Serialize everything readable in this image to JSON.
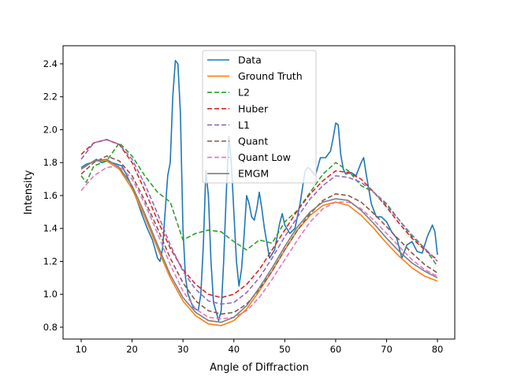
{
  "chart_data": {
    "type": "line",
    "title": "",
    "xlabel": "Angle of Diffraction",
    "ylabel": "Intensity",
    "xlim": [
      6.44,
      83.4
    ],
    "ylim": [
      0.728,
      2.51
    ],
    "xticks": [
      10,
      20,
      30,
      40,
      50,
      60,
      70,
      80
    ],
    "yticks": [
      0.8,
      1.0,
      1.2,
      1.4,
      1.6,
      1.8,
      2.0,
      2.2,
      2.4
    ],
    "grid": false,
    "legend_placement": "upper-center",
    "series": [
      {
        "name": "Data",
        "color": "#1f77b4",
        "style": "solid",
        "x": [
          10,
          11,
          12,
          13,
          14,
          15,
          16,
          17,
          18,
          19,
          20,
          21,
          22,
          23,
          24,
          25,
          25.5,
          26,
          26.5,
          27,
          27.5,
          28,
          28.5,
          29,
          29.5,
          30,
          30.5,
          31,
          32,
          33,
          33.5,
          34,
          34.5,
          35,
          35.5,
          36,
          37,
          37.5,
          38,
          38.5,
          39,
          39.5,
          40,
          40.5,
          41,
          41.5,
          42,
          42.5,
          43,
          43.5,
          44,
          44.5,
          45,
          45.5,
          46,
          47,
          48,
          49,
          49.5,
          50,
          51,
          52,
          53,
          54,
          54.5,
          55,
          56,
          57,
          58,
          59,
          59.5,
          60,
          60.5,
          61,
          61.5,
          62,
          63,
          64,
          65,
          65.5,
          66,
          67,
          68,
          69,
          70,
          71,
          72,
          73,
          74,
          75,
          76,
          77,
          78,
          79,
          79.5,
          80
        ],
        "y": [
          1.77,
          1.79,
          1.8,
          1.82,
          1.8,
          1.81,
          1.8,
          1.79,
          1.78,
          1.72,
          1.65,
          1.57,
          1.48,
          1.4,
          1.33,
          1.22,
          1.2,
          1.28,
          1.5,
          1.72,
          1.8,
          2.2,
          2.42,
          2.4,
          2.1,
          1.4,
          1.1,
          1.0,
          0.92,
          0.9,
          1.0,
          1.3,
          1.75,
          1.6,
          1.2,
          0.95,
          0.84,
          0.9,
          1.2,
          1.6,
          1.96,
          1.8,
          1.5,
          1.2,
          1.05,
          1.15,
          1.35,
          1.6,
          1.55,
          1.47,
          1.45,
          1.52,
          1.62,
          1.52,
          1.4,
          1.22,
          1.27,
          1.43,
          1.49,
          1.42,
          1.37,
          1.4,
          1.55,
          1.75,
          1.77,
          1.76,
          1.72,
          1.83,
          1.83,
          1.87,
          1.95,
          2.04,
          2.03,
          1.85,
          1.76,
          1.73,
          1.74,
          1.72,
          1.8,
          1.83,
          1.73,
          1.55,
          1.47,
          1.47,
          1.44,
          1.38,
          1.34,
          1.22,
          1.3,
          1.32,
          1.26,
          1.25,
          1.35,
          1.42,
          1.38,
          1.24
        ]
      },
      {
        "name": "Ground Truth",
        "color": "#ff7f0e",
        "style": "solid",
        "x": [
          10,
          12.5,
          15,
          17.5,
          20,
          22.5,
          25,
          27.5,
          30,
          32.5,
          35,
          37.5,
          40,
          42.5,
          45,
          47.5,
          50,
          52.5,
          55,
          57.5,
          60,
          62.5,
          65,
          67.5,
          70,
          72.5,
          75,
          77.5,
          80
        ],
        "y": [
          1.76,
          1.81,
          1.81,
          1.76,
          1.64,
          1.47,
          1.28,
          1.1,
          0.96,
          0.87,
          0.82,
          0.81,
          0.84,
          0.91,
          1.02,
          1.14,
          1.27,
          1.39,
          1.48,
          1.54,
          1.56,
          1.54,
          1.48,
          1.4,
          1.31,
          1.23,
          1.16,
          1.11,
          1.08
        ]
      },
      {
        "name": "L2",
        "color": "#2ca02c",
        "style": "dashed",
        "x": [
          10,
          11,
          12.5,
          15,
          17.5,
          20,
          22.5,
          25,
          27.5,
          30,
          32.5,
          35,
          37.5,
          40,
          42.5,
          45,
          47.5,
          50,
          52.5,
          55,
          57.5,
          60,
          62.5,
          65,
          67.5,
          70,
          72.5,
          75,
          77.5,
          80
        ],
        "y": [
          1.72,
          1.68,
          1.78,
          1.81,
          1.92,
          1.84,
          1.72,
          1.62,
          1.56,
          1.33,
          1.37,
          1.39,
          1.38,
          1.32,
          1.27,
          1.33,
          1.31,
          1.44,
          1.51,
          1.62,
          1.73,
          1.8,
          1.75,
          1.66,
          1.62,
          1.55,
          1.45,
          1.35,
          1.28,
          1.17
        ]
      },
      {
        "name": "Huber",
        "color": "#d62728",
        "style": "dashed",
        "x": [
          10,
          12.5,
          15,
          17.5,
          20,
          22.5,
          25,
          27.5,
          30,
          32.5,
          35,
          37.5,
          40,
          42.5,
          45,
          47.5,
          50,
          52.5,
          55,
          57.5,
          60,
          62.5,
          65,
          67.5,
          70,
          72.5,
          75,
          77.5,
          80
        ],
        "y": [
          1.85,
          1.92,
          1.94,
          1.91,
          1.8,
          1.63,
          1.45,
          1.28,
          1.15,
          1.06,
          1.0,
          0.98,
          1.0,
          1.06,
          1.15,
          1.27,
          1.39,
          1.51,
          1.61,
          1.69,
          1.75,
          1.74,
          1.7,
          1.62,
          1.53,
          1.43,
          1.34,
          1.27,
          1.21
        ]
      },
      {
        "name": "L1",
        "color": "#9467bd",
        "style": "dashed",
        "x": [
          10,
          12.5,
          15,
          17.5,
          20,
          22.5,
          25,
          27.5,
          30,
          32.5,
          35,
          37.5,
          40,
          42.5,
          45,
          47.5,
          50,
          52.5,
          55,
          57.5,
          60,
          62.5,
          65,
          67.5,
          70,
          72.5,
          75,
          77.5,
          80
        ],
        "y": [
          1.82,
          1.92,
          1.94,
          1.91,
          1.82,
          1.67,
          1.49,
          1.3,
          1.14,
          1.03,
          0.96,
          0.94,
          0.95,
          1.01,
          1.1,
          1.22,
          1.35,
          1.47,
          1.58,
          1.66,
          1.72,
          1.71,
          1.68,
          1.62,
          1.54,
          1.45,
          1.36,
          1.28,
          1.2
        ]
      },
      {
        "name": "Quant",
        "color": "#8c564b",
        "style": "dashed",
        "x": [
          10,
          12.5,
          15,
          17.5,
          20,
          22.5,
          25,
          27.5,
          30,
          32.5,
          35,
          37.5,
          40,
          42.5,
          45,
          47.5,
          50,
          52.5,
          55,
          57.5,
          60,
          62.5,
          65,
          67.5,
          70,
          72.5,
          75,
          77.5,
          80
        ],
        "y": [
          1.73,
          1.8,
          1.84,
          1.81,
          1.72,
          1.57,
          1.4,
          1.22,
          1.07,
          0.96,
          0.9,
          0.88,
          0.89,
          0.94,
          1.03,
          1.14,
          1.27,
          1.39,
          1.49,
          1.57,
          1.61,
          1.6,
          1.56,
          1.49,
          1.41,
          1.33,
          1.25,
          1.18,
          1.13
        ]
      },
      {
        "name": "Quant Low",
        "color": "#e377c2",
        "style": "dashed",
        "x": [
          10,
          12.5,
          15,
          17.5,
          20,
          22.5,
          25,
          27.5,
          30,
          32.5,
          35,
          37.5,
          40,
          42.5,
          45,
          47.5,
          50,
          52.5,
          55,
          57.5,
          60,
          62.5,
          65,
          67.5,
          70,
          72.5,
          75,
          77.5,
          80
        ],
        "y": [
          1.63,
          1.72,
          1.77,
          1.78,
          1.7,
          1.55,
          1.37,
          1.18,
          1.02,
          0.91,
          0.86,
          0.85,
          0.86,
          0.9,
          0.98,
          1.09,
          1.21,
          1.33,
          1.44,
          1.52,
          1.56,
          1.56,
          1.52,
          1.45,
          1.37,
          1.29,
          1.21,
          1.15,
          1.11
        ]
      },
      {
        "name": "EMGM",
        "color": "#7f7f7f",
        "style": "solid",
        "x": [
          10,
          12.5,
          15,
          17.5,
          20,
          22.5,
          25,
          27.5,
          30,
          32.5,
          35,
          37.5,
          40,
          42.5,
          45,
          47.5,
          50,
          52.5,
          55,
          57.5,
          60,
          62.5,
          65,
          67.5,
          70,
          72.5,
          75,
          77.5,
          80
        ],
        "y": [
          1.76,
          1.81,
          1.82,
          1.77,
          1.66,
          1.49,
          1.3,
          1.12,
          0.98,
          0.89,
          0.84,
          0.83,
          0.86,
          0.93,
          1.04,
          1.16,
          1.29,
          1.41,
          1.5,
          1.56,
          1.58,
          1.57,
          1.51,
          1.43,
          1.34,
          1.26,
          1.19,
          1.14,
          1.1
        ]
      }
    ]
  }
}
